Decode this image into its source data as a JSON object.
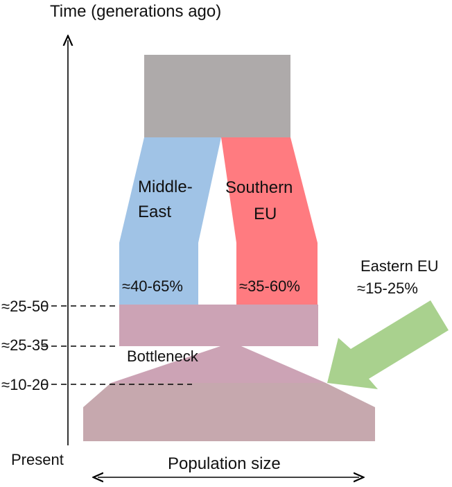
{
  "axes": {
    "y_label": "Time (generations ago)",
    "x_label": "Population size",
    "present_label": "Present"
  },
  "time_marks": [
    "≈25-50",
    "≈25-35",
    "≈10-20"
  ],
  "populations": {
    "middle_east": {
      "name_line1": "Middle-",
      "name_line2": "East",
      "share": "≈40-65%",
      "color": "#a0c3e6"
    },
    "southern_eu": {
      "name_line1": "Southern",
      "name_line2": "EU",
      "share": "≈35-60%",
      "color": "#ff7b80"
    },
    "eastern_eu": {
      "name": "Eastern EU",
      "share": "≈15-25%",
      "color": "#a9d18e"
    },
    "ancestral_color": "#aeaaaa",
    "founder_color": "#cca3b5",
    "present_color": "#c6a8ae"
  },
  "bottleneck_label": "Bottleneck"
}
